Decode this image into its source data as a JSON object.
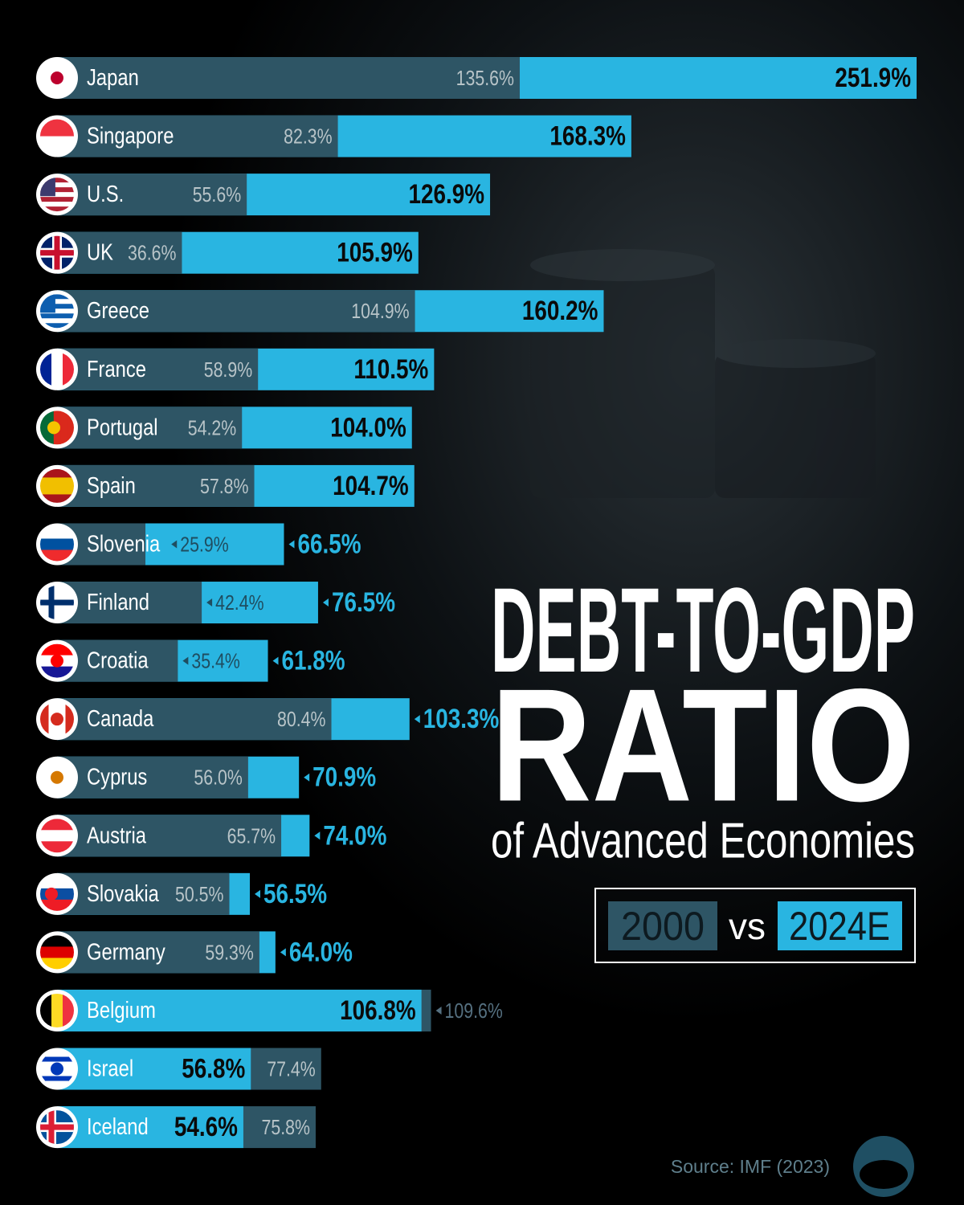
{
  "chart_data": {
    "type": "bar",
    "orientation": "horizontal",
    "title_lines": [
      "DEBT-TO-GDP",
      "RATIO"
    ],
    "subtitle": "of Advanced Economies",
    "legend_joiner": "vs",
    "source": "Source: IMF (2023)",
    "categories": [
      "Japan",
      "Singapore",
      "U.S.",
      "UK",
      "Greece",
      "France",
      "Portugal",
      "Spain",
      "Slovenia",
      "Finland",
      "Croatia",
      "Canada",
      "Cyprus",
      "Austria",
      "Slovakia",
      "Germany",
      "Belgium",
      "Israel",
      "Iceland"
    ],
    "series": [
      {
        "name": "2000",
        "color": "#2e5565",
        "values": [
          135.6,
          82.3,
          55.6,
          36.6,
          104.9,
          58.9,
          54.2,
          57.8,
          25.9,
          42.4,
          35.4,
          80.4,
          56.0,
          65.7,
          50.5,
          59.3,
          109.6,
          77.4,
          75.8
        ],
        "value_labels": [
          "135.6%",
          "82.3%",
          "55.6%",
          "36.6%",
          "104.9%",
          "58.9%",
          "54.2%",
          "57.8%",
          "25.9%",
          "42.4%",
          "35.4%",
          "80.4%",
          "56.0%",
          "65.7%",
          "50.5%",
          "59.3%",
          "109.6%",
          "77.4%",
          "75.8%"
        ]
      },
      {
        "name": "2024E",
        "color": "#29b5e1",
        "values": [
          251.9,
          168.3,
          126.9,
          105.9,
          160.2,
          110.5,
          104.0,
          104.7,
          66.5,
          76.5,
          61.8,
          103.3,
          70.9,
          74.0,
          56.5,
          64.0,
          106.8,
          56.8,
          54.6
        ],
        "value_labels": [
          "251.9%",
          "168.3%",
          "126.9%",
          "105.9%",
          "160.2%",
          "110.5%",
          "104.0%",
          "104.7%",
          "66.5%",
          "76.5%",
          "61.8%",
          "103.3%",
          "70.9%",
          "74.0%",
          "56.5%",
          "64.0%",
          "106.8%",
          "56.8%",
          "54.6%"
        ]
      }
    ]
  }
}
